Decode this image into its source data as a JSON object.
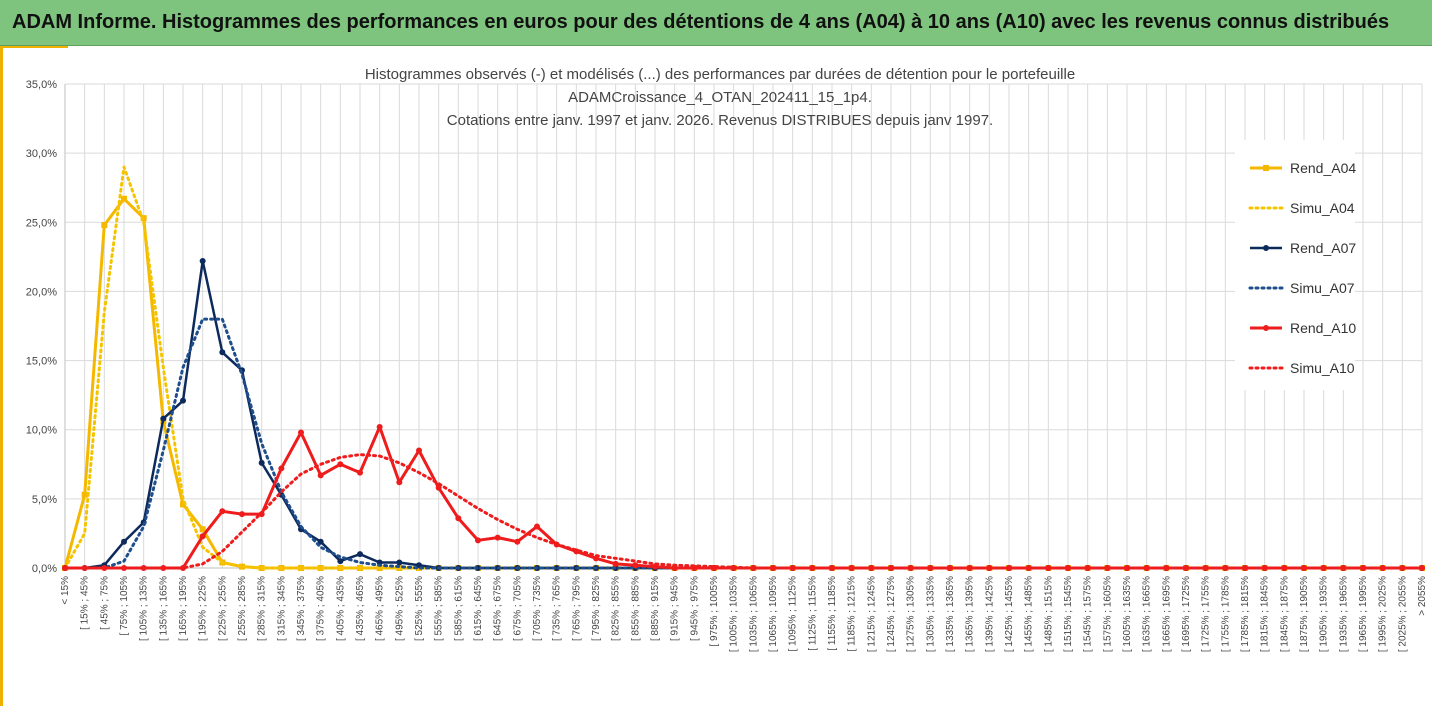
{
  "header": {
    "title": "ADAM Informe. Histogrammes des performances en euros pour des détentions de 4 ans (A04) à 10 ans (A10) avec les revenus connus distribués"
  },
  "chart_data": {
    "type": "line",
    "title_lines": [
      "Histogrammes observés (-) et modélisés (...) des performances par durées de détention pour le portefeuille",
      "ADAMCroissance_4_OTAN_202411_15_1p4.",
      "Cotations entre janv. 1997 et janv. 2026. Revenus DISTRIBUES depuis janv 1997."
    ],
    "ylim": [
      0,
      35
    ],
    "y_ticks": [
      "0,0%",
      "5,0%",
      "10,0%",
      "15,0%",
      "20,0%",
      "25,0%",
      "30,0%",
      "35,0%"
    ],
    "y_tick_values": [
      0,
      5,
      10,
      15,
      20,
      25,
      30,
      35
    ],
    "grid": true,
    "legend_position": "right",
    "categories": [
      "< 15%",
      "[ 15% ; 45%",
      "[ 45% ; 75%",
      "[ 75% ; 105%",
      "[ 105% ; 135%",
      "[ 135% ; 165%",
      "[ 165% ; 195%",
      "[ 195% ; 225%",
      "[ 225% ; 255%",
      "[ 255% ; 285%",
      "[ 285% ; 315%",
      "[ 315% ; 345%",
      "[ 345% ; 375%",
      "[ 375% ; 405%",
      "[ 405% ; 435%",
      "[ 435% ; 465%",
      "[ 465% ; 495%",
      "[ 495% ; 525%",
      "[ 525% ; 555%",
      "[ 555% ; 585%",
      "[ 585% ; 615%",
      "[ 615% ; 645%",
      "[ 645% ; 675%",
      "[ 675% ; 705%",
      "[ 705% ; 735%",
      "[ 735% ; 765%",
      "[ 765% ; 795%",
      "[ 795% ; 825%",
      "[ 825% ; 855%",
      "[ 855% ; 885%",
      "[ 885% ; 915%",
      "[ 915% ; 945%",
      "[ 945% ; 975%",
      "[ 975% ; 1005%",
      "[ 1005% ; 1035%",
      "[ 1035% ; 1065%",
      "[ 1065% ; 1095%",
      "[ 1095% ; 1125%",
      "[ 1125% ; 1155%",
      "[ 1155% ; 1185%",
      "[ 1185% ; 1215%",
      "[ 1215% ; 1245%",
      "[ 1245% ; 1275%",
      "[ 1275% ; 1305%",
      "[ 1305% ; 1335%",
      "[ 1335% ; 1365%",
      "[ 1365% ; 1395%",
      "[ 1395% ; 1425%",
      "[ 1425% ; 1455%",
      "[ 1455% ; 1485%",
      "[ 1485% ; 1515%",
      "[ 1515% ; 1545%",
      "[ 1545% ; 1575%",
      "[ 1575% ; 1605%",
      "[ 1605% ; 1635%",
      "[ 1635% ; 1665%",
      "[ 1665% ; 1695%",
      "[ 1695% ; 1725%",
      "[ 1725% ; 1755%",
      "[ 1755% ; 1785%",
      "[ 1785% ; 1815%",
      "[ 1815% ; 1845%",
      "[ 1845% ; 1875%",
      "[ 1875% ; 1905%",
      "[ 1905% ; 1935%",
      "[ 1935% ; 1965%",
      "[ 1965% ; 1995%",
      "[ 1995% ; 2025%",
      "[ 2025% ; 2055%",
      "> 2055%"
    ],
    "series": [
      {
        "name": "Rend_A04",
        "color": "#f5b800",
        "style": "solid",
        "marker": "square",
        "width": 3,
        "values": [
          0,
          5.3,
          24.8,
          26.7,
          25.3,
          10.6,
          4.6,
          2.8,
          0.4,
          0.1,
          0,
          0,
          0,
          0,
          0,
          0,
          0,
          0,
          0,
          0,
          0,
          0,
          0,
          0,
          0,
          0,
          0,
          0,
          0,
          0,
          0,
          0,
          0,
          0,
          0,
          0,
          0,
          0,
          0,
          0,
          0,
          0,
          0,
          0,
          0,
          0,
          0,
          0,
          0,
          0,
          0,
          0,
          0,
          0,
          0,
          0,
          0,
          0,
          0,
          0,
          0,
          0,
          0,
          0,
          0,
          0,
          0,
          0,
          0,
          0
        ]
      },
      {
        "name": "Simu_A04",
        "color": "#f5c400",
        "style": "dotted",
        "marker": "none",
        "width": 3,
        "values": [
          0,
          2.5,
          18.5,
          29.0,
          25.0,
          14.5,
          5.0,
          1.5,
          0.4,
          0.1,
          0,
          0,
          0,
          0,
          0,
          0,
          0,
          0,
          0,
          0,
          0,
          0,
          0,
          0,
          0,
          0,
          0,
          0,
          0,
          0,
          0,
          0,
          0,
          0,
          0,
          0,
          0,
          0,
          0,
          0,
          0,
          0,
          0,
          0,
          0,
          0,
          0,
          0,
          0,
          0,
          0,
          0,
          0,
          0,
          0,
          0,
          0,
          0,
          0,
          0,
          0,
          0,
          0,
          0,
          0,
          0,
          0,
          0,
          0,
          0
        ]
      },
      {
        "name": "Rend_A07",
        "color": "#0d2a5c",
        "style": "solid",
        "marker": "circle",
        "width": 2.5,
        "values": [
          0,
          0,
          0.2,
          1.9,
          3.3,
          10.8,
          12.1,
          22.2,
          15.6,
          14.3,
          7.6,
          5.3,
          2.8,
          1.9,
          0.5,
          1.0,
          0.4,
          0.4,
          0.2,
          0,
          0,
          0,
          0,
          0,
          0,
          0,
          0,
          0,
          0,
          0,
          0,
          0,
          0,
          0,
          0,
          0,
          0,
          0,
          0,
          0,
          0,
          0,
          0,
          0,
          0,
          0,
          0,
          0,
          0,
          0,
          0,
          0,
          0,
          0,
          0,
          0,
          0,
          0,
          0,
          0,
          0,
          0,
          0,
          0,
          0,
          0,
          0,
          0,
          0,
          0
        ]
      },
      {
        "name": "Simu_A07",
        "color": "#1f4e8c",
        "style": "dotted",
        "marker": "none",
        "width": 3,
        "values": [
          0,
          0,
          0,
          0.5,
          3.0,
          8.5,
          14.5,
          18.0,
          18.0,
          14.0,
          9.0,
          5.5,
          3.0,
          1.5,
          0.8,
          0.4,
          0.2,
          0.1,
          0,
          0,
          0,
          0,
          0,
          0,
          0,
          0,
          0,
          0,
          0,
          0,
          0,
          0,
          0,
          0,
          0,
          0,
          0,
          0,
          0,
          0,
          0,
          0,
          0,
          0,
          0,
          0,
          0,
          0,
          0,
          0,
          0,
          0,
          0,
          0,
          0,
          0,
          0,
          0,
          0,
          0,
          0,
          0,
          0,
          0,
          0,
          0,
          0,
          0,
          0,
          0
        ]
      },
      {
        "name": "Rend_A10",
        "color": "#ee1c1c",
        "style": "solid",
        "marker": "circle",
        "width": 3,
        "values": [
          0,
          0,
          0,
          0,
          0,
          0,
          0,
          2.3,
          4.1,
          3.9,
          3.9,
          7.2,
          9.8,
          6.7,
          7.5,
          6.9,
          10.2,
          6.2,
          8.5,
          5.8,
          3.6,
          2.0,
          2.2,
          1.9,
          3.0,
          1.7,
          1.2,
          0.7,
          0.3,
          0.2,
          0.1,
          0,
          0,
          0,
          0,
          0,
          0,
          0,
          0,
          0,
          0,
          0,
          0,
          0,
          0,
          0,
          0,
          0,
          0,
          0,
          0,
          0,
          0,
          0,
          0,
          0,
          0,
          0,
          0,
          0,
          0,
          0,
          0,
          0,
          0,
          0,
          0,
          0,
          0,
          0
        ]
      },
      {
        "name": "Simu_A10",
        "color": "#ee1c1c",
        "style": "dotted",
        "marker": "none",
        "width": 3,
        "values": [
          0,
          0,
          0,
          0,
          0,
          0,
          0,
          0.3,
          1.2,
          2.6,
          4.0,
          5.5,
          6.8,
          7.5,
          8.0,
          8.2,
          8.1,
          7.6,
          6.9,
          6.1,
          5.2,
          4.3,
          3.5,
          2.8,
          2.2,
          1.7,
          1.3,
          0.9,
          0.7,
          0.5,
          0.3,
          0.2,
          0.15,
          0.1,
          0.05,
          0,
          0,
          0,
          0,
          0,
          0,
          0,
          0,
          0,
          0,
          0,
          0,
          0,
          0,
          0,
          0,
          0,
          0,
          0,
          0,
          0,
          0,
          0,
          0,
          0,
          0,
          0,
          0,
          0,
          0,
          0,
          0,
          0,
          0,
          0
        ]
      }
    ]
  }
}
